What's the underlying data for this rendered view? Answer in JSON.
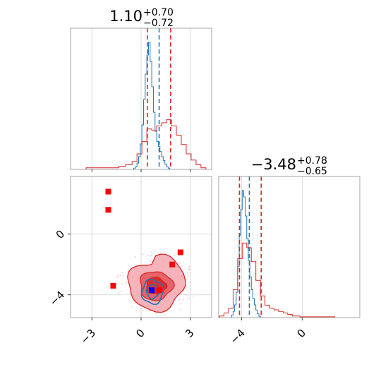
{
  "chart_data": [
    {
      "type": "histogram",
      "panel": "top-left",
      "title_value": "1.10",
      "title_plus": "+0.70",
      "title_minus": "−0.72",
      "xlim": [
        -4.3,
        4.3
      ],
      "x_grid": [
        -3,
        0,
        3
      ],
      "quantile_lines": {
        "red": [
          0.38,
          1.8
        ],
        "blue": [
          1.1,
          0.6
        ]
      },
      "series": [
        {
          "name": "",
          "color": "#1f77b4",
          "bins": [
            [
              -0.4,
              0.01
            ],
            [
              -0.3,
              0.02
            ],
            [
              -0.2,
              0.05
            ],
            [
              -0.1,
              0.1
            ],
            [
              0.0,
              0.2
            ],
            [
              0.1,
              0.35
            ],
            [
              0.2,
              0.55
            ],
            [
              0.3,
              0.75
            ],
            [
              0.4,
              0.9
            ],
            [
              0.5,
              1.0
            ],
            [
              0.6,
              0.85
            ],
            [
              0.7,
              0.65
            ],
            [
              0.8,
              0.45
            ],
            [
              0.9,
              0.3
            ],
            [
              1.0,
              0.22
            ],
            [
              1.1,
              0.18
            ],
            [
              1.2,
              0.14
            ],
            [
              1.3,
              0.1
            ],
            [
              1.4,
              0.07
            ],
            [
              1.5,
              0.04
            ],
            [
              1.6,
              0.02
            ],
            [
              1.7,
              0.01
            ]
          ]
        },
        {
          "name": "",
          "color": "#d62728",
          "bins": [
            [
              -3.2,
              0.01
            ],
            [
              -2.8,
              0.01
            ],
            [
              -2.4,
              0.01
            ],
            [
              -2.0,
              0.01
            ],
            [
              -1.6,
              0.01
            ],
            [
              -1.2,
              0.02
            ],
            [
              -0.8,
              0.03
            ],
            [
              -0.4,
              0.05
            ],
            [
              -0.1,
              0.1
            ],
            [
              0.2,
              0.18
            ],
            [
              0.5,
              0.26
            ],
            [
              0.8,
              0.25
            ],
            [
              1.1,
              0.28
            ],
            [
              1.4,
              0.3
            ],
            [
              1.7,
              0.32
            ],
            [
              2.0,
              0.28
            ],
            [
              2.3,
              0.22
            ],
            [
              2.6,
              0.16
            ],
            [
              2.9,
              0.1
            ],
            [
              3.2,
              0.06
            ],
            [
              3.5,
              0.03
            ],
            [
              3.8,
              0.01
            ]
          ]
        }
      ]
    },
    {
      "type": "histogram",
      "panel": "bottom-right",
      "title_value": "−3.48",
      "title_plus": "+0.78",
      "title_minus": "−0.65",
      "xlim": [
        -5.5,
        3.8
      ],
      "x_grid": [
        -4,
        0
      ],
      "x_ticks": [
        "−4",
        "0"
      ],
      "quantile_lines": {
        "red": [
          -4.13,
          -2.7
        ],
        "blue": [
          -3.48
        ]
      },
      "series": [
        {
          "name": "",
          "color": "#1f77b4",
          "bins": [
            [
              -4.6,
              0.02
            ],
            [
              -4.5,
              0.05
            ],
            [
              -4.4,
              0.1
            ],
            [
              -4.3,
              0.2
            ],
            [
              -4.2,
              0.4
            ],
            [
              -4.1,
              0.65
            ],
            [
              -4.0,
              0.85
            ],
            [
              -3.9,
              1.0
            ],
            [
              -3.8,
              0.95
            ],
            [
              -3.7,
              0.8
            ],
            [
              -3.6,
              0.62
            ],
            [
              -3.5,
              0.45
            ],
            [
              -3.4,
              0.32
            ],
            [
              -3.3,
              0.22
            ],
            [
              -3.2,
              0.15
            ],
            [
              -3.1,
              0.1
            ],
            [
              -3.0,
              0.06
            ],
            [
              -2.9,
              0.03
            ],
            [
              -2.8,
              0.01
            ]
          ]
        },
        {
          "name": "",
          "color": "#d62728",
          "bins": [
            [
              -5.3,
              0.01
            ],
            [
              -5.0,
              0.03
            ],
            [
              -4.7,
              0.06
            ],
            [
              -4.4,
              0.18
            ],
            [
              -4.1,
              0.38
            ],
            [
              -3.8,
              0.48
            ],
            [
              -3.5,
              0.45
            ],
            [
              -3.2,
              0.36
            ],
            [
              -2.9,
              0.24
            ],
            [
              -2.6,
              0.14
            ],
            [
              -2.3,
              0.08
            ],
            [
              -2.0,
              0.06
            ],
            [
              -1.7,
              0.05
            ],
            [
              -1.4,
              0.04
            ],
            [
              -1.1,
              0.03
            ],
            [
              -0.8,
              0.02
            ],
            [
              -0.5,
              0.01
            ],
            [
              0.0,
              0.005
            ],
            [
              1.0,
              0.005
            ],
            [
              2.0,
              0.005
            ]
          ]
        }
      ]
    },
    {
      "type": "contour-scatter",
      "panel": "bottom-left",
      "xlim": [
        -4.3,
        4.3
      ],
      "ylim": [
        -5.5,
        3.8
      ],
      "x_ticks": [
        "−3",
        "0",
        "3"
      ],
      "x_tick_values": [
        -3,
        0,
        3
      ],
      "y_ticks": [
        "−4",
        "0"
      ],
      "y_tick_values": [
        -4,
        0
      ],
      "red_contour": {
        "cx": 0.9,
        "cy": -3.4,
        "rx": [
          1.7,
          1.0,
          0.6
        ],
        "ry": [
          1.6,
          0.95,
          0.55
        ]
      },
      "blue_contour": {
        "cx": 0.7,
        "cy": -3.8,
        "rx": [
          0.65,
          0.35
        ],
        "ry": [
          0.8,
          0.45
        ]
      },
      "red_markers": [
        [
          -2.0,
          2.8
        ],
        [
          -2.0,
          1.6
        ],
        [
          -1.7,
          -3.4
        ],
        [
          2.4,
          -1.2
        ],
        [
          1.9,
          -2.0
        ],
        [
          1.1,
          -3.7
        ]
      ],
      "blue_marker": [
        0.65,
        -3.7
      ]
    }
  ]
}
